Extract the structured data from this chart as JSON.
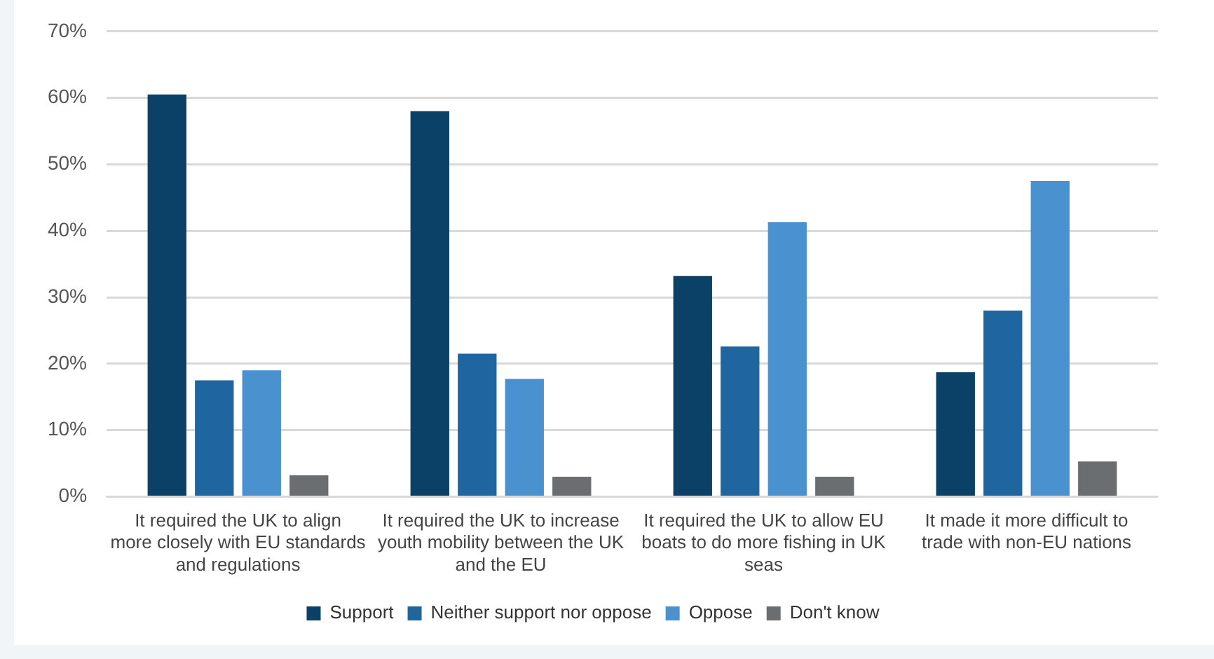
{
  "chart_data": {
    "type": "bar",
    "categories": [
      "It required the UK to align more closely with EU standards and regulations",
      "It required the UK to increase youth mobility between the UK and the EU",
      "It required the UK to allow EU boats to do more fishing in UK seas",
      "It made it more difficult to trade with non-EU nations"
    ],
    "series": [
      {
        "name": "Support",
        "color": "#0b4166",
        "values": [
          60.5,
          58,
          33.2,
          18.7
        ]
      },
      {
        "name": "Neither support nor oppose",
        "color": "#1f65a0",
        "values": [
          17.5,
          21.5,
          22.6,
          28
        ]
      },
      {
        "name": "Oppose",
        "color": "#4a91cf",
        "values": [
          19,
          17.7,
          41.3,
          47.5
        ]
      },
      {
        "name": "Don't know",
        "color": "#6b6e70",
        "values": [
          3.2,
          3,
          3,
          5.3
        ]
      }
    ],
    "ylim": [
      0,
      70
    ],
    "yticks": [
      {
        "value": 0,
        "label": "0%"
      },
      {
        "value": 10,
        "label": "10%"
      },
      {
        "value": 20,
        "label": "20%"
      },
      {
        "value": 30,
        "label": "30%"
      },
      {
        "value": 40,
        "label": "40%"
      },
      {
        "value": 50,
        "label": "50%"
      },
      {
        "value": 60,
        "label": "60%"
      },
      {
        "value": 70,
        "label": "70%"
      }
    ],
    "grid": "y",
    "legend": "bottom"
  }
}
